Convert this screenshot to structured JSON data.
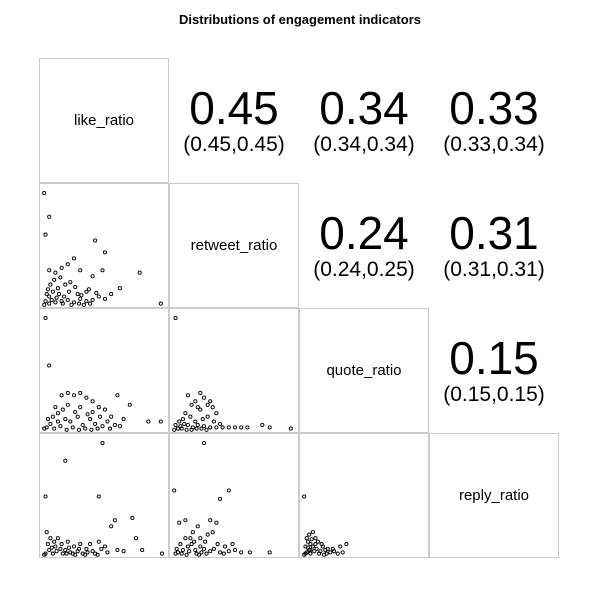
{
  "chart_data": {
    "type": "scatter",
    "title": "Distributions of engagement indicators",
    "variables": [
      "like_ratio",
      "retweet_ratio",
      "quote_ratio",
      "reply_ratio"
    ],
    "correlations": [
      {
        "row": 0,
        "col": 1,
        "value": "0.45",
        "ci": "(0.45,0.45)"
      },
      {
        "row": 0,
        "col": 2,
        "value": "0.34",
        "ci": "(0.34,0.34)"
      },
      {
        "row": 0,
        "col": 3,
        "value": "0.33",
        "ci": "(0.33,0.34)"
      },
      {
        "row": 1,
        "col": 2,
        "value": "0.24",
        "ci": "(0.24,0.25)"
      },
      {
        "row": 1,
        "col": 3,
        "value": "0.31",
        "ci": "(0.31,0.31)"
      },
      {
        "row": 2,
        "col": 3,
        "value": "0.15",
        "ci": "(0.15,0.15)"
      }
    ],
    "scatter_panels": [
      {
        "row": 1,
        "col": 0,
        "x_var": "like_ratio",
        "y_var": "retweet_ratio",
        "points": [
          [
            0.01,
            0.95
          ],
          [
            0.05,
            0.75
          ],
          [
            0.02,
            0.6
          ],
          [
            0.42,
            0.55
          ],
          [
            0.5,
            0.45
          ],
          [
            0.48,
            0.3
          ],
          [
            0.78,
            0.28
          ],
          [
            0.25,
            0.4
          ],
          [
            0.2,
            0.35
          ],
          [
            0.15,
            0.32
          ],
          [
            0.3,
            0.3
          ],
          [
            0.1,
            0.28
          ],
          [
            0.05,
            0.3
          ],
          [
            0.4,
            0.25
          ],
          [
            0.62,
            0.15
          ],
          [
            0.95,
            0.02
          ],
          [
            0.35,
            0.12
          ],
          [
            0.28,
            0.1
          ],
          [
            0.55,
            0.1
          ],
          [
            0.45,
            0.08
          ],
          [
            0.22,
            0.2
          ],
          [
            0.18,
            0.18
          ],
          [
            0.12,
            0.15
          ],
          [
            0.08,
            0.12
          ],
          [
            0.05,
            0.08
          ],
          [
            0.3,
            0.06
          ],
          [
            0.2,
            0.05
          ],
          [
            0.15,
            0.04
          ],
          [
            0.1,
            0.03
          ],
          [
            0.05,
            0.02
          ],
          [
            0.35,
            0.04
          ],
          [
            0.25,
            0.03
          ],
          [
            0.4,
            0.05
          ],
          [
            0.02,
            0.04
          ],
          [
            0.03,
            0.1
          ],
          [
            0.06,
            0.18
          ],
          [
            0.09,
            0.22
          ],
          [
            0.13,
            0.1
          ],
          [
            0.17,
            0.08
          ],
          [
            0.21,
            0.12
          ],
          [
            0.26,
            0.16
          ],
          [
            0.31,
            0.09
          ],
          [
            0.37,
            0.14
          ],
          [
            0.43,
            0.11
          ],
          [
            0.5,
            0.06
          ],
          [
            0.01,
            0.01
          ],
          [
            0.07,
            0.05
          ],
          [
            0.11,
            0.07
          ],
          [
            0.16,
            0.02
          ],
          [
            0.23,
            0.01
          ],
          [
            0.29,
            0.02
          ],
          [
            0.33,
            0.01
          ],
          [
            0.38,
            0.02
          ],
          [
            0.04,
            0.14
          ],
          [
            0.14,
            0.24
          ]
        ]
      },
      {
        "row": 2,
        "col": 0,
        "x_var": "like_ratio",
        "y_var": "quote_ratio",
        "points": [
          [
            0.02,
            0.95
          ],
          [
            0.05,
            0.55
          ],
          [
            0.15,
            0.3
          ],
          [
            0.2,
            0.32
          ],
          [
            0.25,
            0.3
          ],
          [
            0.3,
            0.32
          ],
          [
            0.35,
            0.28
          ],
          [
            0.4,
            0.25
          ],
          [
            0.45,
            0.2
          ],
          [
            0.5,
            0.18
          ],
          [
            0.6,
            0.3
          ],
          [
            0.55,
            0.12
          ],
          [
            0.65,
            0.1
          ],
          [
            0.7,
            0.22
          ],
          [
            0.85,
            0.08
          ],
          [
            0.95,
            0.08
          ],
          [
            0.1,
            0.2
          ],
          [
            0.12,
            0.15
          ],
          [
            0.18,
            0.1
          ],
          [
            0.22,
            0.08
          ],
          [
            0.28,
            0.12
          ],
          [
            0.32,
            0.05
          ],
          [
            0.38,
            0.1
          ],
          [
            0.42,
            0.06
          ],
          [
            0.48,
            0.04
          ],
          [
            0.08,
            0.12
          ],
          [
            0.06,
            0.06
          ],
          [
            0.03,
            0.03
          ],
          [
            0.14,
            0.04
          ],
          [
            0.24,
            0.03
          ],
          [
            0.34,
            0.02
          ],
          [
            0.44,
            0.02
          ],
          [
            0.54,
            0.02
          ],
          [
            0.58,
            0.05
          ],
          [
            0.16,
            0.18
          ],
          [
            0.26,
            0.16
          ],
          [
            0.36,
            0.14
          ],
          [
            0.04,
            0.1
          ],
          [
            0.09,
            0.02
          ],
          [
            0.19,
            0.01
          ],
          [
            0.29,
            0.01
          ],
          [
            0.39,
            0.01
          ],
          [
            0.01,
            0.02
          ],
          [
            0.12,
            0.08
          ],
          [
            0.2,
            0.22
          ],
          [
            0.3,
            0.2
          ],
          [
            0.4,
            0.16
          ],
          [
            0.46,
            0.12
          ],
          [
            0.52,
            0.08
          ],
          [
            0.62,
            0.04
          ]
        ]
      },
      {
        "row": 2,
        "col": 1,
        "x_var": "retweet_ratio",
        "y_var": "quote_ratio",
        "points": [
          [
            0.02,
            0.95
          ],
          [
            0.12,
            0.3
          ],
          [
            0.15,
            0.22
          ],
          [
            0.18,
            0.25
          ],
          [
            0.2,
            0.2
          ],
          [
            0.22,
            0.18
          ],
          [
            0.25,
            0.28
          ],
          [
            0.28,
            0.22
          ],
          [
            0.3,
            0.25
          ],
          [
            0.32,
            0.2
          ],
          [
            0.35,
            0.15
          ],
          [
            0.22,
            0.32
          ],
          [
            0.1,
            0.15
          ],
          [
            0.14,
            0.12
          ],
          [
            0.08,
            0.1
          ],
          [
            0.05,
            0.08
          ],
          [
            0.2,
            0.05
          ],
          [
            0.25,
            0.04
          ],
          [
            0.3,
            0.03
          ],
          [
            0.35,
            0.03
          ],
          [
            0.4,
            0.03
          ],
          [
            0.45,
            0.03
          ],
          [
            0.5,
            0.03
          ],
          [
            0.55,
            0.03
          ],
          [
            0.6,
            0.03
          ],
          [
            0.72,
            0.05
          ],
          [
            0.78,
            0.03
          ],
          [
            0.95,
            0.02
          ],
          [
            0.12,
            0.05
          ],
          [
            0.16,
            0.03
          ],
          [
            0.06,
            0.04
          ],
          [
            0.04,
            0.02
          ],
          [
            0.09,
            0.06
          ],
          [
            0.18,
            0.08
          ],
          [
            0.24,
            0.1
          ],
          [
            0.28,
            0.12
          ],
          [
            0.02,
            0.05
          ],
          [
            0.01,
            0.01
          ],
          [
            0.07,
            0.02
          ],
          [
            0.11,
            0.01
          ],
          [
            0.15,
            0.01
          ],
          [
            0.19,
            0.02
          ],
          [
            0.23,
            0.02
          ],
          [
            0.27,
            0.01
          ],
          [
            0.33,
            0.08
          ],
          [
            0.38,
            0.06
          ]
        ]
      },
      {
        "row": 3,
        "col": 0,
        "x_var": "like_ratio",
        "y_var": "reply_ratio",
        "points": [
          [
            0.02,
            0.5
          ],
          [
            0.18,
            0.8
          ],
          [
            0.48,
            0.95
          ],
          [
            0.45,
            0.5
          ],
          [
            0.58,
            0.3
          ],
          [
            0.55,
            0.25
          ],
          [
            0.72,
            0.32
          ],
          [
            0.75,
            0.15
          ],
          [
            0.38,
            0.1
          ],
          [
            0.45,
            0.12
          ],
          [
            0.5,
            0.08
          ],
          [
            0.6,
            0.05
          ],
          [
            0.65,
            0.04
          ],
          [
            0.96,
            0.02
          ],
          [
            0.8,
            0.05
          ],
          [
            0.3,
            0.1
          ],
          [
            0.25,
            0.08
          ],
          [
            0.2,
            0.12
          ],
          [
            0.15,
            0.1
          ],
          [
            0.1,
            0.08
          ],
          [
            0.05,
            0.05
          ],
          [
            0.12,
            0.15
          ],
          [
            0.35,
            0.06
          ],
          [
            0.28,
            0.04
          ],
          [
            0.22,
            0.03
          ],
          [
            0.18,
            0.05
          ],
          [
            0.08,
            0.02
          ],
          [
            0.04,
            0.1
          ],
          [
            0.02,
            0.02
          ],
          [
            0.4,
            0.04
          ],
          [
            0.32,
            0.02
          ],
          [
            0.26,
            0.01
          ],
          [
            0.16,
            0.02
          ],
          [
            0.06,
            0.15
          ],
          [
            0.03,
            0.2
          ],
          [
            0.14,
            0.06
          ],
          [
            0.42,
            0.02
          ],
          [
            0.52,
            0.03
          ],
          [
            0.01,
            0.01
          ],
          [
            0.11,
            0.04
          ],
          [
            0.21,
            0.07
          ],
          [
            0.36,
            0.03
          ],
          [
            0.47,
            0.06
          ],
          [
            0.09,
            0.12
          ],
          [
            0.19,
            0.02
          ],
          [
            0.29,
            0.06
          ],
          [
            0.07,
            0.07
          ],
          [
            0.24,
            0.02
          ],
          [
            0.34,
            0.01
          ],
          [
            0.44,
            0.01
          ]
        ]
      },
      {
        "row": 3,
        "col": 1,
        "x_var": "retweet_ratio",
        "y_var": "reply_ratio",
        "points": [
          [
            0.01,
            0.55
          ],
          [
            0.25,
            0.95
          ],
          [
            0.45,
            0.55
          ],
          [
            0.38,
            0.48
          ],
          [
            0.3,
            0.3
          ],
          [
            0.35,
            0.28
          ],
          [
            0.32,
            0.2
          ],
          [
            0.28,
            0.18
          ],
          [
            0.22,
            0.15
          ],
          [
            0.2,
            0.25
          ],
          [
            0.1,
            0.3
          ],
          [
            0.05,
            0.28
          ],
          [
            0.15,
            0.1
          ],
          [
            0.12,
            0.08
          ],
          [
            0.18,
            0.05
          ],
          [
            0.25,
            0.06
          ],
          [
            0.3,
            0.04
          ],
          [
            0.38,
            0.03
          ],
          [
            0.45,
            0.04
          ],
          [
            0.55,
            0.03
          ],
          [
            0.62,
            0.03
          ],
          [
            0.78,
            0.03
          ],
          [
            0.08,
            0.05
          ],
          [
            0.04,
            0.03
          ],
          [
            0.02,
            0.02
          ],
          [
            0.14,
            0.15
          ],
          [
            0.26,
            0.12
          ],
          [
            0.36,
            0.1
          ],
          [
            0.42,
            0.08
          ],
          [
            0.5,
            0.05
          ],
          [
            0.06,
            0.1
          ],
          [
            0.1,
            0.15
          ],
          [
            0.16,
            0.2
          ],
          [
            0.22,
            0.08
          ],
          [
            0.03,
            0.06
          ],
          [
            0.07,
            0.02
          ],
          [
            0.11,
            0.01
          ],
          [
            0.19,
            0.02
          ],
          [
            0.23,
            0.03
          ],
          [
            0.27,
            0.02
          ],
          [
            0.33,
            0.06
          ],
          [
            0.41,
            0.02
          ],
          [
            0.48,
            0.1
          ],
          [
            0.13,
            0.04
          ],
          [
            0.17,
            0.12
          ],
          [
            0.21,
            0.01
          ]
        ]
      },
      {
        "row": 3,
        "col": 2,
        "x_var": "quote_ratio",
        "y_var": "reply_ratio",
        "points": [
          [
            0.01,
            0.5
          ],
          [
            0.08,
            0.2
          ],
          [
            0.1,
            0.15
          ],
          [
            0.12,
            0.12
          ],
          [
            0.08,
            0.08
          ],
          [
            0.06,
            0.1
          ],
          [
            0.15,
            0.1
          ],
          [
            0.18,
            0.05
          ],
          [
            0.2,
            0.06
          ],
          [
            0.25,
            0.04
          ],
          [
            0.3,
            0.08
          ],
          [
            0.32,
            0.03
          ],
          [
            0.35,
            0.1
          ],
          [
            0.05,
            0.05
          ],
          [
            0.03,
            0.03
          ],
          [
            0.02,
            0.08
          ],
          [
            0.04,
            0.12
          ],
          [
            0.06,
            0.02
          ],
          [
            0.09,
            0.04
          ],
          [
            0.11,
            0.06
          ],
          [
            0.14,
            0.04
          ],
          [
            0.16,
            0.08
          ],
          [
            0.22,
            0.03
          ],
          [
            0.28,
            0.02
          ],
          [
            0.02,
            0.02
          ],
          [
            0.03,
            0.15
          ],
          [
            0.05,
            0.18
          ],
          [
            0.07,
            0.14
          ],
          [
            0.13,
            0.02
          ],
          [
            0.17,
            0.01
          ],
          [
            0.01,
            0.01
          ],
          [
            0.19,
            0.02
          ],
          [
            0.24,
            0.06
          ],
          [
            0.1,
            0.1
          ],
          [
            0.04,
            0.07
          ],
          [
            0.06,
            0.05
          ]
        ]
      }
    ]
  }
}
